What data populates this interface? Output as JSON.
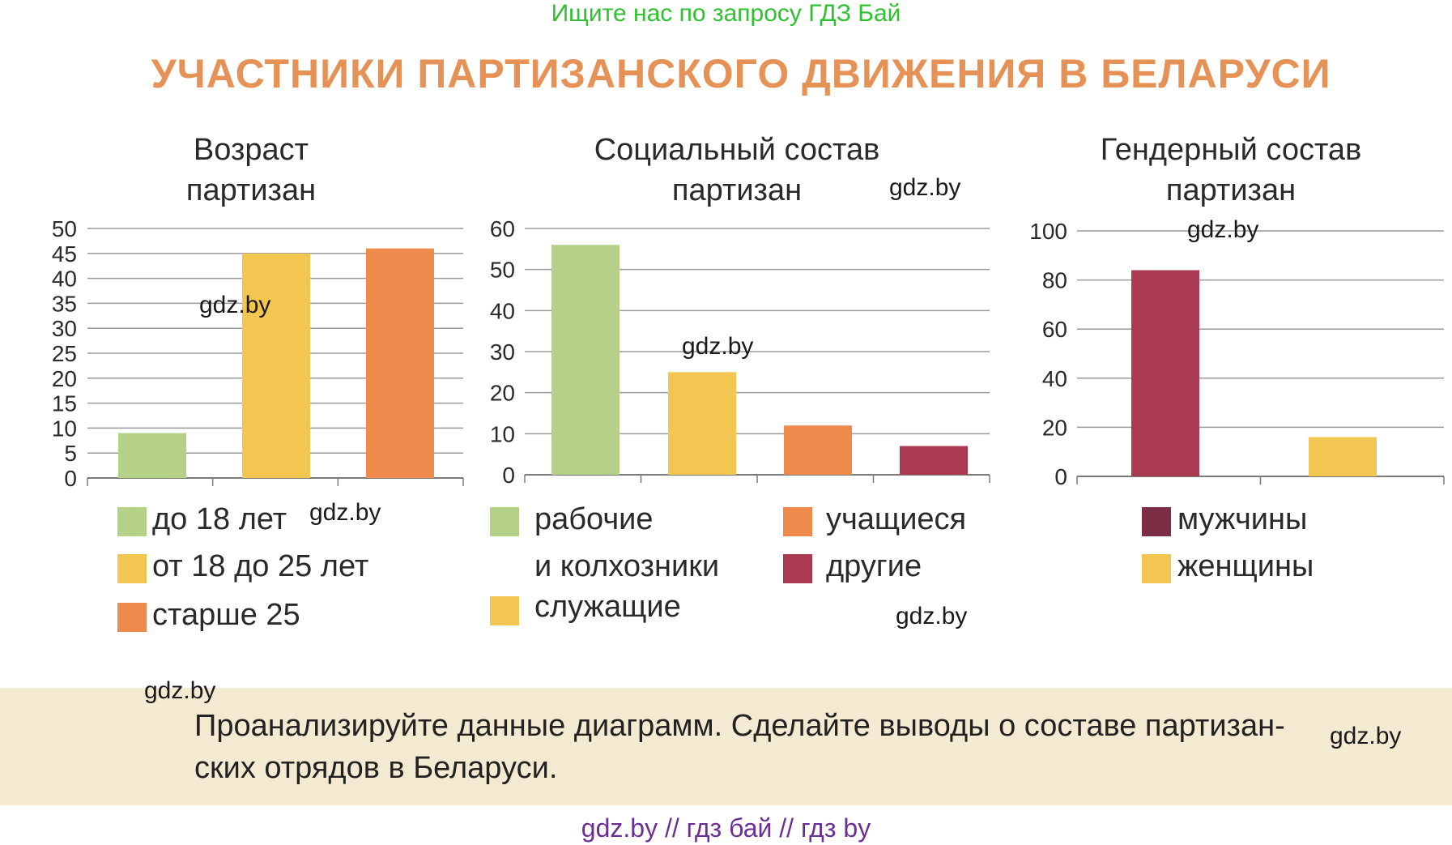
{
  "header": {
    "banner": "Ищите нас по запросу ГДЗ Бай",
    "title": "УЧАСТНИКИ ПАРТИЗАНСКОГО ДВИЖЕНИЯ В БЕЛАРУСИ"
  },
  "colors": {
    "green": "#b5d087",
    "yellow": "#f3c652",
    "orange": "#ee8a4c",
    "crimson": "#a93a52",
    "maroon": "#7d2d44",
    "grid": "#9a9a9a"
  },
  "chart_data": [
    {
      "type": "bar",
      "title": "Возраст партизан",
      "title_lines": [
        "Возраст",
        "партизан"
      ],
      "categories": [
        "до 18 лет",
        "от 18 до 25 лет",
        "старше 25"
      ],
      "values": [
        9,
        45,
        46
      ],
      "ylim": [
        0,
        50
      ],
      "yticks": [
        0,
        5,
        10,
        15,
        20,
        25,
        30,
        35,
        40,
        45,
        50
      ],
      "grid": true,
      "legend": [
        {
          "label": "до 18 лет",
          "color": "#b5d087"
        },
        {
          "label": "от 18 до 25 лет",
          "color": "#f3c652"
        },
        {
          "label": "старше 25",
          "color": "#ee8a4c"
        }
      ]
    },
    {
      "type": "bar",
      "title": "Социальный состав партизан",
      "title_lines": [
        "Социальный состав",
        "партизан"
      ],
      "categories": [
        "рабочие и колхозники",
        "служащие",
        "учащиеся",
        "другие"
      ],
      "values": [
        56,
        25,
        12,
        7
      ],
      "ylim": [
        0,
        60
      ],
      "yticks": [
        0,
        10,
        20,
        30,
        40,
        50,
        60
      ],
      "grid": true,
      "legend": [
        {
          "label": "рабочие",
          "label2": "и колхозники",
          "color": "#b5d087"
        },
        {
          "label": "служащие",
          "color": "#f3c652"
        },
        {
          "label": "учащиеся",
          "color": "#ee8a4c"
        },
        {
          "label": "другие",
          "color": "#a93a52"
        }
      ]
    },
    {
      "type": "bar",
      "title": "Гендерный состав партизан",
      "title_lines": [
        "Гендерный состав",
        "партизан"
      ],
      "categories": [
        "мужчины",
        "женщины"
      ],
      "values": [
        84,
        16
      ],
      "ylim": [
        0,
        100
      ],
      "yticks": [
        0,
        20,
        40,
        60,
        80,
        100
      ],
      "grid": true,
      "legend": [
        {
          "label": "мужчины",
          "color": "#7d2d44"
        },
        {
          "label": "женщины",
          "color": "#f3c652"
        }
      ]
    }
  ],
  "watermarks": [
    "gdz.by",
    "gdz.by",
    "gdz.by",
    "gdz.by",
    "gdz.by",
    "gdz.by",
    "gdz.by",
    "gdz.by"
  ],
  "task": {
    "text": "Проанализируйте данные диаграмм. Сделайте выводы о составе партизан-ских отрядов в Беларуси."
  },
  "footer": {
    "text": "gdz.by  //  гдз бай  //  гдз by"
  }
}
